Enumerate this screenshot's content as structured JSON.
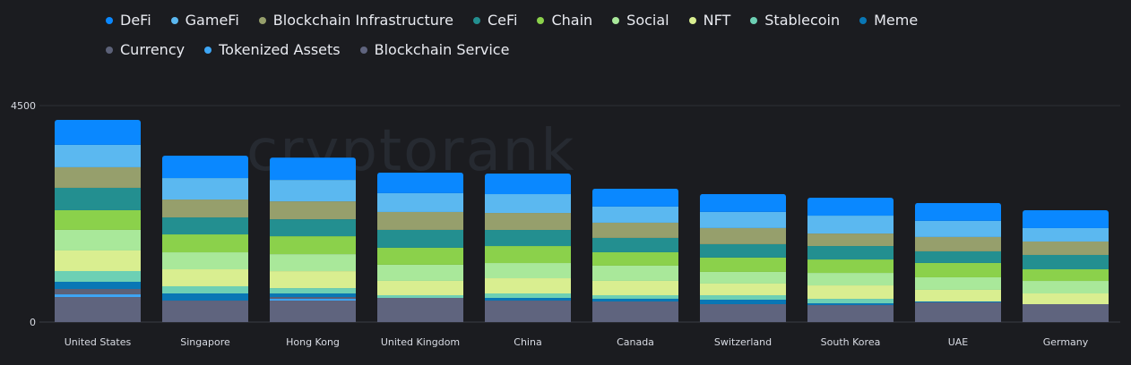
{
  "chart_data": {
    "type": "bar",
    "stacked": true,
    "watermark": "cryptorank",
    "categories": [
      "United States",
      "Singapore",
      "Hong Kong",
      "United Kingdom",
      "China",
      "Canada",
      "Switzerland",
      "South Korea",
      "UAE",
      "Germany"
    ],
    "ylim": [
      0,
      4500
    ],
    "yticks": [
      "0",
      "4500"
    ],
    "grid": true,
    "legend_position": "top",
    "series": [
      {
        "name": "DeFi",
        "color": "#0a88ff",
        "values": [
          520,
          465,
          465,
          428,
          428,
          372,
          372,
          372,
          372,
          372
        ]
      },
      {
        "name": "GameFi",
        "color": "#5bb8f0",
        "values": [
          465,
          446,
          446,
          391,
          391,
          335,
          335,
          372,
          335,
          279
        ]
      },
      {
        "name": "Blockchain Infrastructure",
        "color": "#969f6c",
        "values": [
          428,
          372,
          372,
          372,
          353,
          316,
          335,
          260,
          298,
          279
        ]
      },
      {
        "name": "CeFi",
        "color": "#238f90",
        "values": [
          465,
          353,
          353,
          372,
          335,
          298,
          279,
          279,
          242,
          298
        ]
      },
      {
        "name": "Chain",
        "color": "#8bd14b",
        "values": [
          409,
          372,
          372,
          353,
          353,
          279,
          298,
          279,
          298,
          242
        ]
      },
      {
        "name": "Social",
        "color": "#a9e89a",
        "values": [
          428,
          353,
          353,
          335,
          316,
          316,
          242,
          260,
          260,
          260
        ]
      },
      {
        "name": "NFT",
        "color": "#d9ee90",
        "values": [
          428,
          353,
          353,
          298,
          316,
          298,
          242,
          279,
          242,
          223
        ]
      },
      {
        "name": "Stablecoin",
        "color": "#6dd0b4",
        "values": [
          223,
          149,
          112,
          56,
          93,
          74,
          93,
          93,
          0,
          0
        ]
      },
      {
        "name": "Meme",
        "color": "#0977b5",
        "values": [
          149,
          149,
          74,
          0,
          56,
          56,
          93,
          37,
          19,
          0
        ]
      },
      {
        "name": "Currency",
        "color": "#5c6178",
        "values": [
          112,
          0,
          37,
          0,
          0,
          0,
          0,
          0,
          0,
          0
        ]
      },
      {
        "name": "Tokenized Assets",
        "color": "#3ea6f5",
        "values": [
          56,
          0,
          37,
          0,
          0,
          0,
          0,
          0,
          0,
          0
        ]
      },
      {
        "name": "Blockchain Service",
        "color": "#5f647e",
        "values": [
          520,
          446,
          446,
          502,
          446,
          428,
          372,
          353,
          409,
          372
        ]
      }
    ]
  }
}
